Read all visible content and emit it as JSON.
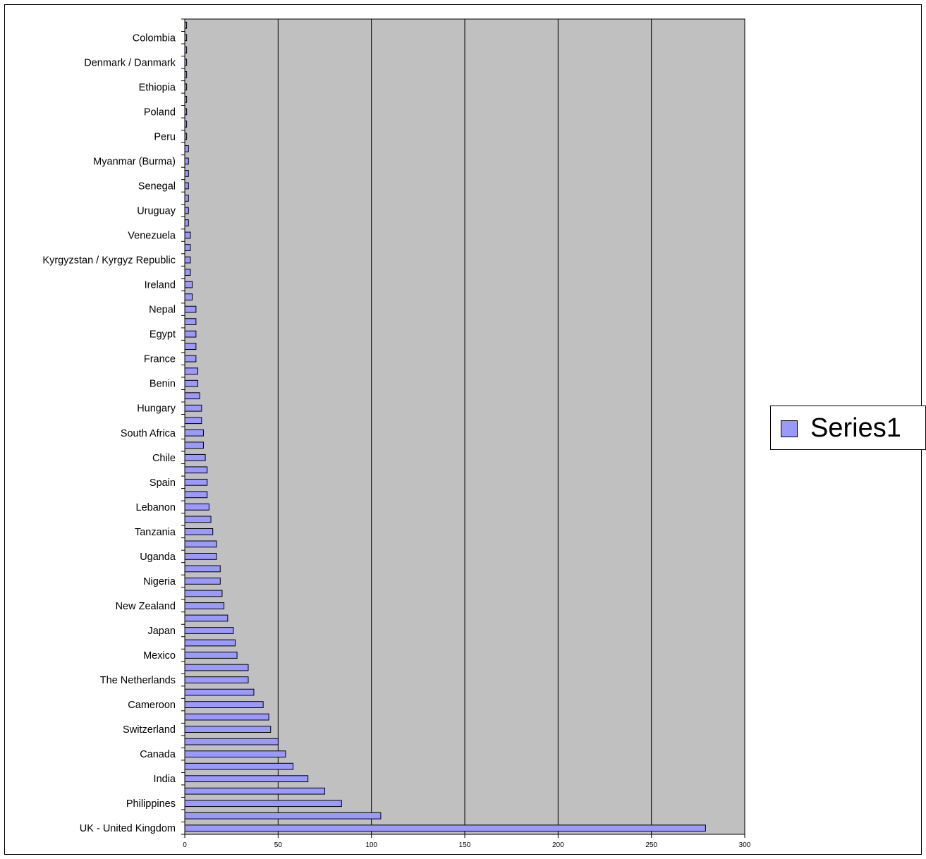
{
  "chart_data": {
    "type": "bar",
    "orientation": "horizontal",
    "categories": [
      "UK - United Kingdom",
      "",
      "Philippines",
      "",
      "India",
      "",
      "Canada",
      "",
      "Switzerland",
      "",
      "Cameroon",
      "",
      "The Netherlands",
      "",
      "Mexico",
      "",
      "Japan",
      "",
      "New Zealand",
      "",
      "Nigeria",
      "",
      "Uganda",
      "",
      "Tanzania",
      "",
      "Lebanon",
      "",
      "Spain",
      "",
      "Chile",
      "",
      "South Africa",
      "",
      "Hungary",
      "",
      "Benin",
      "",
      "France",
      "",
      "Egypt",
      "",
      "Nepal",
      "",
      "Ireland",
      "",
      "Kyrgyzstan / Kyrgyz Republic",
      "",
      "Venezuela",
      "",
      "Uruguay",
      "",
      "Senegal",
      "",
      "Myanmar (Burma)",
      "",
      "Peru",
      "",
      "Poland",
      "",
      "Ethiopia",
      "",
      "Denmark / Danmark",
      "",
      "Colombia",
      ""
    ],
    "series": [
      {
        "name": "Series1",
        "values": [
          279,
          105,
          84,
          75,
          66,
          58,
          54,
          50,
          46,
          45,
          42,
          37,
          34,
          34,
          28,
          27,
          26,
          23,
          21,
          20,
          19,
          19,
          17,
          17,
          15,
          14,
          13,
          12,
          12,
          12,
          11,
          10,
          10,
          9,
          9,
          8,
          7,
          7,
          6,
          6,
          6,
          6,
          6,
          4,
          4,
          3,
          3,
          3,
          3,
          2,
          2,
          2,
          2,
          2,
          2,
          2,
          1,
          1,
          1,
          1,
          1,
          1,
          1,
          1,
          1,
          1
        ]
      }
    ],
    "xlim": [
      0,
      300
    ],
    "xticks": [
      "0",
      "50",
      "100",
      "150",
      "200",
      "250",
      "300"
    ],
    "grid": true,
    "legend_position": "right",
    "colors": {
      "bar": "#9999ff",
      "plot_area": "#c0c0c0",
      "border": "#000000"
    }
  }
}
